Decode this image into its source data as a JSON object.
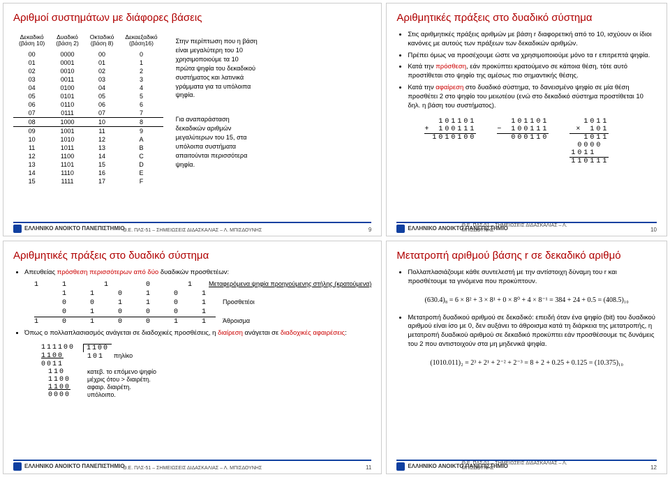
{
  "footer": {
    "org": "ΕΛΛΗΝΙΚΟ ΑΝΟΙΚΤΟ ΠΑΝΕΠΙΣΤΗΜΙΟ",
    "course": "Θ.Ε. ΠΛΣ-51 – ΣΗΜΕΙΩΣΕΙΣ ΔΙΔΑΣΚΑΛΙΑΣ – Λ. ΜΠΙΣΔΟΥΝΗΣ"
  },
  "s1": {
    "title": "Αριθμοί συστημάτων με διάφορες βάσεις",
    "page": 9,
    "headers": [
      [
        "Δεκαδικό",
        "(βάση 10)"
      ],
      [
        "Δυαδικό",
        "(βάση 2)"
      ],
      [
        "Οκταδικό",
        "(βάση 8)"
      ],
      [
        "Δεκαεξαδικό",
        "(βάση16)"
      ]
    ],
    "rows": [
      [
        "00",
        "0000",
        "00",
        "0"
      ],
      [
        "01",
        "0001",
        "01",
        "1"
      ],
      [
        "02",
        "0010",
        "02",
        "2"
      ],
      [
        "03",
        "0011",
        "03",
        "3"
      ],
      [
        "04",
        "0100",
        "04",
        "4"
      ],
      [
        "05",
        "0101",
        "05",
        "5"
      ],
      [
        "06",
        "0110",
        "06",
        "6"
      ],
      [
        "07",
        "0111",
        "07",
        "7"
      ],
      [
        "08",
        "1000",
        "10",
        "8"
      ],
      [
        "09",
        "1001",
        "11",
        "9"
      ],
      [
        "10",
        "1010",
        "12",
        "A"
      ],
      [
        "11",
        "1011",
        "13",
        "B"
      ],
      [
        "12",
        "1100",
        "14",
        "C"
      ],
      [
        "13",
        "1101",
        "15",
        "D"
      ],
      [
        "14",
        "1110",
        "16",
        "E"
      ],
      [
        "15",
        "1111",
        "17",
        "F"
      ]
    ],
    "highlight_row": 8,
    "side1": "Στην περίπτωση που η βάση είναι μεγαλύτερη του 10 χρησιμοποιούμε τα 10 πρώτα ψηφία του δεκαδικού συστήματος και λατινικά γράμματα για τα υπόλοιπα ψηφία.",
    "side2": "Για αναπαράσταση δεκαδικών αριθμών μεγαλύτερων του 15, στα υπόλοιπα συστήματα απαιτούνται περισσότερα ψηφία."
  },
  "s2": {
    "title": "Αριθμητικές πράξεις στο δυαδικό σύστημα",
    "page": 10,
    "b1": "Στις αριθμητικές πράξεις αριθμών με βάση r διαφορετική από το 10, ισχύουν οι ίδιοι κανόνες με αυτούς των πράξεων των δεκαδικών αριθμών.",
    "b2": "Πρέπει όμως να προσέχουμε ώστε να χρησιμοποιούμε μόνο τα r επιτρεπτά ψηφία.",
    "b3a": "Κατά την ",
    "b3b": "πρόσθεση",
    "b3c": ", εάν προκύπτει κρατούμενο σε κάποια θέση, τότε αυτό προστίθεται στο ψηφίο της αμέσως πιο σημαντικής θέσης.",
    "b4a": "Κατά την ",
    "b4b": "αφαίρεση",
    "b4c": " στο δυαδικό σύστημα, το δανεισμένο ψηφίο σε μία θέση προσθέτει 2 στο ψηφίο του μειωτέου (ενώ στο δεκαδικό σύστημα προστίθεται 10 δηλ. η βάση του συστήματος).",
    "add": {
      "a": "101101",
      "b": "100111",
      "s": "1010100",
      "op": "+"
    },
    "sub": {
      "a": "101101",
      "b": "100111",
      "s": "000110",
      "op": "−"
    },
    "mul": {
      "a": "1011",
      "b": "101",
      "p1": "1011",
      "p2": "0000",
      "p3": "1011",
      "s": "110111",
      "op": "×"
    }
  },
  "s3": {
    "title": "Αριθμητικές πράξεις στο δυαδικό σύστημα",
    "page": 11,
    "b1a": "Απευθείας ",
    "b1b": "πρόσθεση περισσότερων από δύο",
    "b1c": " δυαδικών προσθετέων:",
    "carry": "1 1  1  0  1",
    "rowA": "  1 1 0 1 0 1",
    "rowB": "  0 0 1 1 0 1",
    "rowC": "  0 1 0 0 0 1",
    "sum": "1 0 1 0 0 1 1",
    "annCarry": "Μεταφερόμενα ψηφία προηγούμενης στήλης (κρατούμενα)",
    "annBody": "Προσθετέοι",
    "annSum": "Άθροισμα",
    "b2a": "Όπως ο πολλαπλασιασμός ανάγεται σε διαδοχικές προσθέσεις, η ",
    "b2b": "διαίρεση",
    "b2c": " ανάγεται σε ",
    "b2d": "διαδοχικές αφαιρέσεις",
    "b2e": ":",
    "div": {
      "dividend": "111100",
      "divisor": "1100",
      "quot": "101",
      "r1": "1100",
      "r2": "0011",
      "r3": "110",
      "r4": "1100",
      "r5": "1100",
      "r6": "0000"
    },
    "qlab": "πηλίκο",
    "step1": "κατεβ. το επόμενο ψηφίο",
    "step2": "μέχρις ότου > διαιρέτη.",
    "step3": "αφαιρ. διαιρέτη.",
    "step4": "υπόλοιπο."
  },
  "s4": {
    "title": "Μετατροπή αριθμού βάσης r σε δεκαδικό αριθμό",
    "page": 12,
    "b1": "Πολλαπλασιάζουμε κάθε συντελεστή με την αντίστοιχη δύναμη του r και προσθέτουμε τα γινόμενα που προκύπτουν.",
    "f1": "(630.4)₈ = 6 × 8² + 3 × 8¹ + 0 × 8⁰ + 4 × 8⁻¹ = 384 + 24 + 0.5 = (408.5)₁₀",
    "b2": "Μετατροπή δυαδικού αριθμού σε δεκαδικό: επειδή όταν ένα ψηφίο (bit) του δυαδικού αριθμού είναι ίσο με 0, δεν αυξάνει το άθροισμα κατά τη διάρκεια της μετατροπής, η μετατροπή δυαδικού αριθμού σε δεκαδικό προκύπτει εάν προσθέσουμε τις δυνάμεις του 2 που αντιστοιχούν στα μη μηδενικά ψηφία.",
    "f2": "(1010.011)₂ = 2³ + 2¹ + 2⁻² + 2⁻³ = 8 + 2 + 0.25 + 0.125 = (10.375)₁₀"
  }
}
